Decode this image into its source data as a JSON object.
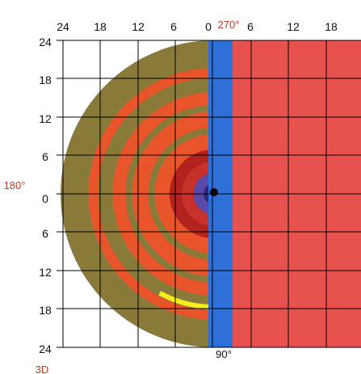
{
  "figure": {
    "top_ticks": [
      "24",
      "18",
      "12",
      "6",
      "0",
      "6",
      "12",
      "18"
    ],
    "left_ticks": [
      "24",
      "18",
      "12",
      "6",
      "0",
      "6",
      "12",
      "18",
      "24"
    ],
    "angle_labels": {
      "top": "270°",
      "left": "180°",
      "bottom": "90°"
    },
    "model_label": "3D"
  },
  "colors": {
    "label_red": "#cc3322",
    "grid": "#000000",
    "right_region": "#e8524e",
    "blue_band": "#2e6fd8",
    "olive": "#8a7a3a",
    "orange": "#e8552b",
    "yellow": "#f6ee1c",
    "dark_red": "#b2221e",
    "purple": "#5a4aa8",
    "navy": "#2a2a78"
  }
}
